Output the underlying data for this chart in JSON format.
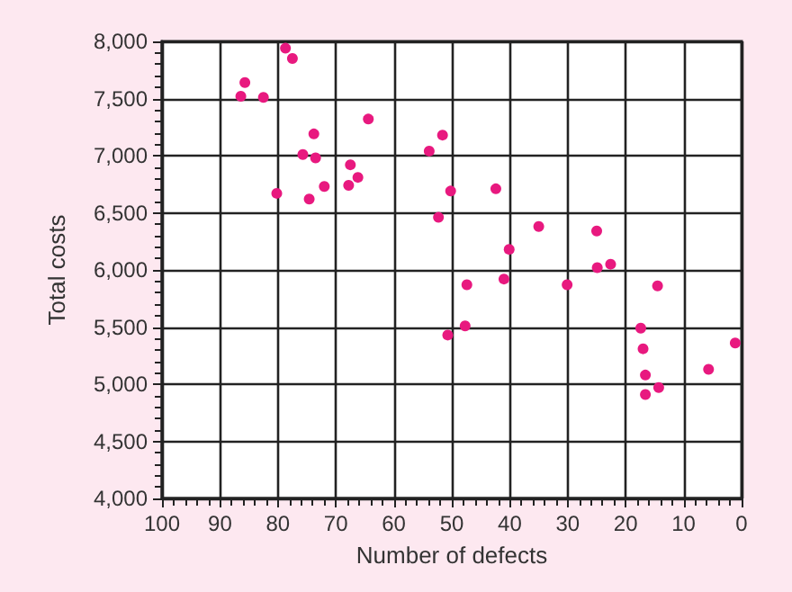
{
  "chart_data": {
    "type": "scatter",
    "xlabel": "Number of defects",
    "ylabel": "Total costs",
    "xlim": [
      100,
      0
    ],
    "xticks": [
      100,
      90,
      80,
      70,
      60,
      50,
      40,
      30,
      20,
      10,
      0
    ],
    "ylim": [
      4000,
      8000
    ],
    "yticks": [
      {
        "value": 4000,
        "label": "4,000"
      },
      {
        "value": 4500,
        "label": "4,500"
      },
      {
        "value": 5000,
        "label": "5,000"
      },
      {
        "value": 5500,
        "label": "5,500"
      },
      {
        "value": 6000,
        "label": "6,000"
      },
      {
        "value": 6500,
        "label": "6,500"
      },
      {
        "value": 7000,
        "label": "7,000"
      },
      {
        "value": 7500,
        "label": "7,500"
      },
      {
        "value": 8000,
        "label": "8,000"
      }
    ],
    "grid": true,
    "marker": "circle",
    "series": [
      {
        "color": "#e8197f",
        "x": [
          78.7,
          77.5,
          85.7,
          86.4,
          82.5,
          64.4,
          73.8,
          51.6,
          53.9,
          75.7,
          73.5,
          67.5,
          66.2,
          67.8,
          72.0,
          80.2,
          50.2,
          42.4,
          74.6,
          52.3,
          35.0,
          25.0,
          40.1,
          22.6,
          24.9,
          47.4,
          41.0,
          30.1,
          14.5,
          47.7,
          50.7,
          17.4,
          17.0,
          1.1,
          5.7,
          16.6,
          14.3,
          16.6
        ],
        "values": [
          7940,
          7850,
          7640,
          7520,
          7510,
          7320,
          7190,
          7180,
          7040,
          7010,
          6980,
          6920,
          6810,
          6740,
          6730,
          6670,
          6690,
          6710,
          6620,
          6460,
          6380,
          6340,
          6180,
          6050,
          6020,
          5870,
          5920,
          5870,
          5860,
          5510,
          5430,
          5490,
          5310,
          5360,
          5130,
          5080,
          4970,
          4910
        ]
      }
    ]
  }
}
